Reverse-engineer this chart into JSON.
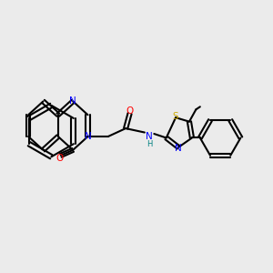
{
  "background_color": "#ebebeb",
  "bond_color": "#000000",
  "atom_colors": {
    "N": "#0000ff",
    "O": "#ff0000",
    "S": "#ccaa00",
    "C": "#000000",
    "H": "#008080"
  },
  "figsize": [
    3.0,
    3.0
  ],
  "dpi": 100
}
